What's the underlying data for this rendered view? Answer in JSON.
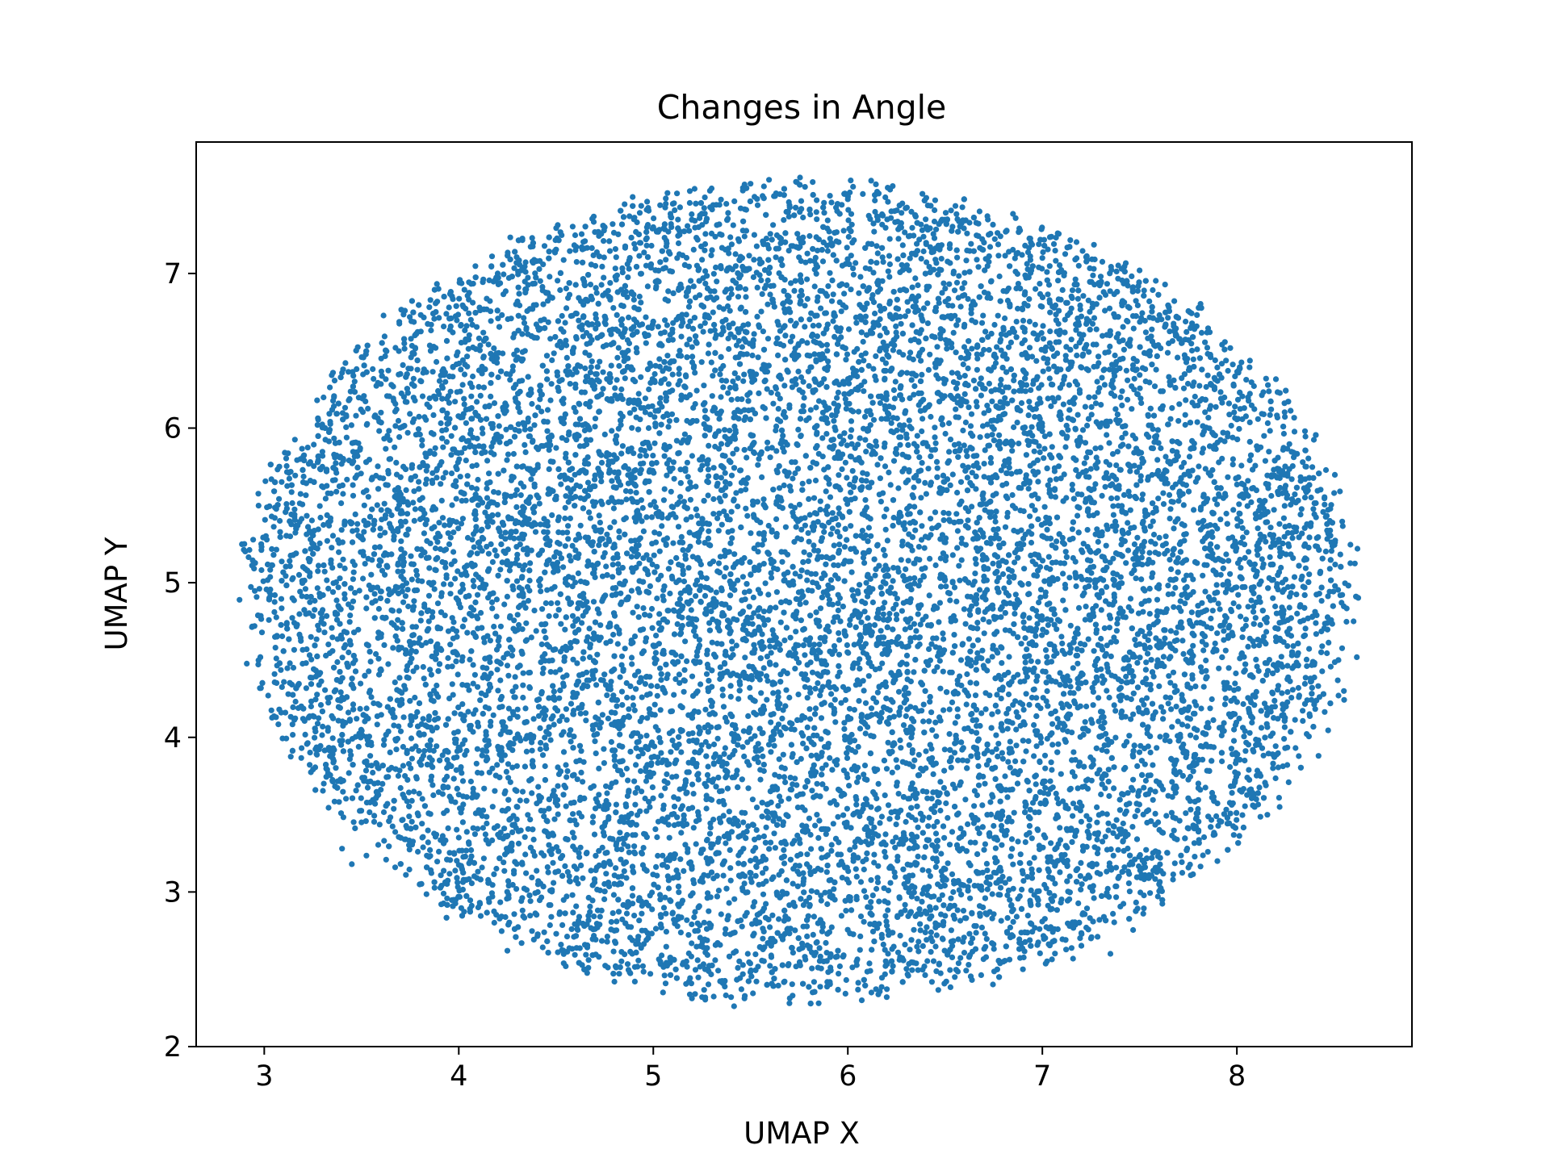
{
  "chart_data": {
    "type": "scatter",
    "title": "Changes in Angle",
    "xlabel": "UMAP X",
    "ylabel": "UMAP Y",
    "xlim": [
      2.65,
      8.9
    ],
    "ylim": [
      2.0,
      7.85
    ],
    "xticks": [
      3,
      4,
      5,
      6,
      7,
      8
    ],
    "yticks": [
      2,
      3,
      4,
      5,
      6,
      7
    ],
    "xtick_labels": [
      "3",
      "4",
      "5",
      "6",
      "7",
      "8"
    ],
    "ytick_labels": [
      "2",
      "3",
      "4",
      "5",
      "6",
      "7"
    ],
    "grid": false,
    "legend": "none",
    "marker_color": "#1f77b4",
    "series": [
      {
        "approx_point_count": 15000,
        "distribution": "dense uniform cloud filling an ellipse",
        "center": [
          5.75,
          4.93
        ],
        "semi_axes": [
          2.85,
          2.65
        ],
        "points": [
          [
            2.95,
            4.72
          ],
          [
            3.02,
            4.27
          ],
          [
            3.08,
            5.4
          ],
          [
            3.15,
            4.45
          ],
          [
            3.2,
            5.65
          ],
          [
            3.3,
            5.82
          ],
          [
            3.35,
            3.72
          ],
          [
            3.4,
            3.28
          ],
          [
            3.45,
            3.18
          ],
          [
            3.5,
            3.45
          ],
          [
            3.6,
            6.1
          ],
          [
            3.7,
            6.35
          ],
          [
            3.8,
            3.05
          ],
          [
            3.95,
            6.78
          ],
          [
            4.1,
            2.9
          ],
          [
            4.2,
            7.0
          ],
          [
            4.25,
            2.62
          ],
          [
            4.4,
            7.08
          ],
          [
            4.55,
            2.52
          ],
          [
            4.6,
            7.15
          ],
          [
            4.8,
            2.42
          ],
          [
            4.9,
            7.35
          ],
          [
            5.05,
            2.35
          ],
          [
            5.1,
            7.45
          ],
          [
            5.3,
            7.55
          ],
          [
            5.4,
            2.32
          ],
          [
            5.5,
            7.58
          ],
          [
            5.62,
            7.5
          ],
          [
            5.7,
            2.28
          ],
          [
            5.78,
            7.56
          ],
          [
            5.85,
            2.28
          ],
          [
            6.0,
            7.48
          ],
          [
            6.12,
            7.6
          ],
          [
            6.2,
            2.32
          ],
          [
            6.4,
            7.35
          ],
          [
            6.55,
            2.45
          ],
          [
            6.7,
            7.2
          ],
          [
            6.9,
            2.5
          ],
          [
            7.0,
            7.1
          ],
          [
            7.25,
            2.7
          ],
          [
            7.3,
            6.98
          ],
          [
            7.35,
            2.6
          ],
          [
            7.55,
            6.82
          ],
          [
            7.6,
            3.05
          ],
          [
            7.85,
            6.48
          ],
          [
            7.9,
            3.2
          ],
          [
            8.1,
            3.6
          ],
          [
            8.15,
            6.32
          ],
          [
            8.22,
            3.55
          ],
          [
            8.35,
            5.98
          ],
          [
            8.42,
            3.88
          ],
          [
            8.5,
            5.58
          ],
          [
            8.55,
            4.3
          ],
          [
            8.62,
            5.22
          ],
          [
            8.6,
            4.75
          ]
        ]
      }
    ]
  }
}
